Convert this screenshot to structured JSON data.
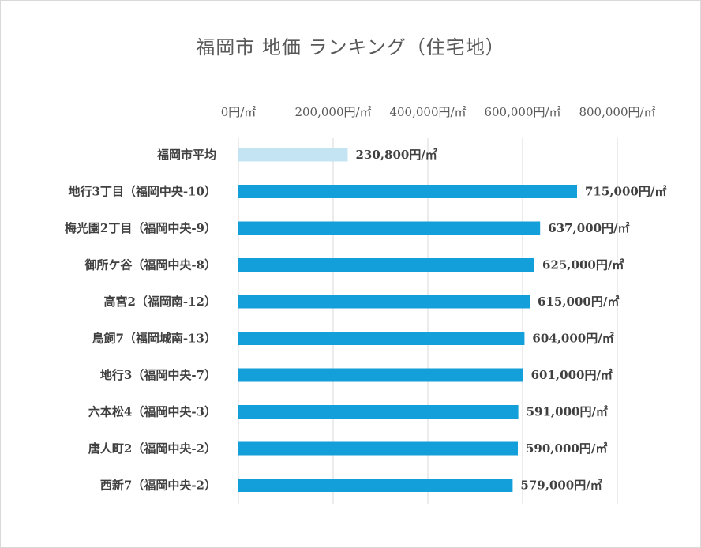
{
  "chart_data": {
    "type": "bar",
    "orientation": "horizontal",
    "title": "福岡市 地価 ランキング（住宅地）",
    "categories": [
      "福岡市平均",
      "地行3丁目（福岡中央-10）",
      "梅光園2丁目（福岡中央-9）",
      "御所ケ谷（福岡中央-8）",
      "高宮2（福岡南-12）",
      "鳥飼7（福岡城南-13）",
      "地行3（福岡中央-7）",
      "六本松4（福岡中央-3）",
      "唐人町2（福岡中央-2）",
      "西新7（福岡中央-2）"
    ],
    "values": [
      230800,
      715000,
      637000,
      625000,
      615000,
      604000,
      601000,
      591000,
      590000,
      579000
    ],
    "data_labels": [
      "230,800円/㎡",
      "715,000円/㎡",
      "637,000円/㎡",
      "625,000円/㎡",
      "615,000円/㎡",
      "604,000円/㎡",
      "601,000円/㎡",
      "591,000円/㎡",
      "590,000円/㎡",
      "579,000円/㎡"
    ],
    "xlim": [
      0,
      800000
    ],
    "x_ticks": [
      0,
      200000,
      400000,
      600000,
      800000
    ],
    "x_tick_labels": [
      "0円/㎡",
      "200,000円/㎡",
      "400,000円/㎡",
      "600,000円/㎡",
      "800,000円/㎡"
    ],
    "x_axis_position": "top",
    "gridlines": "vertical",
    "legend": "none",
    "colors": {
      "average_bar": "#c5e4f3",
      "bar": "#139fd9",
      "grid": "#d9d9d9"
    }
  }
}
